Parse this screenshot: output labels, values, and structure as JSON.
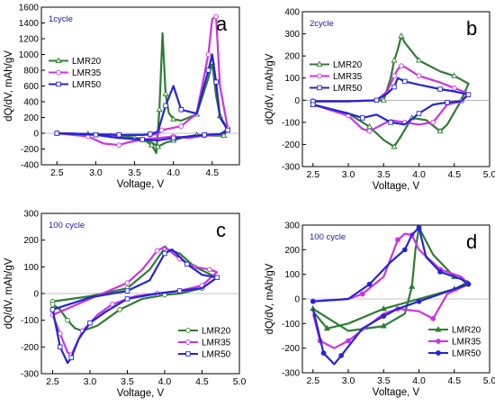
{
  "colors": {
    "LMR20": "#2e7d32",
    "LMR35": "#cc33e0",
    "LMR50": "#2424d8",
    "label_blue": "#1a1aa0"
  },
  "chart_data": [
    {
      "type": "line",
      "letter": "a",
      "cycle_label": "1cycle",
      "xlabel": "Voltage, V",
      "ylabel": "dQ/dV, mAh/gV",
      "xlim": [
        2.3,
        4.85
      ],
      "ylim": [
        -400,
        1600
      ],
      "xticks": [
        2.5,
        3.0,
        3.5,
        4.0,
        4.5
      ],
      "yticks": [
        -400,
        -200,
        0,
        200,
        400,
        600,
        800,
        1000,
        1200,
        1400,
        1600
      ],
      "legend": "left",
      "series": [
        {
          "name": "LMR20",
          "marker": "tri-open",
          "x": [
            2.5,
            2.9,
            3.3,
            3.6,
            3.72,
            3.78,
            3.82,
            3.86,
            3.9,
            3.94,
            4.0,
            4.1,
            4.3,
            4.45,
            4.5,
            4.55,
            4.6,
            4.7,
            4.65,
            4.5,
            4.3,
            4.1,
            4.0,
            3.9,
            3.8,
            3.7,
            3.5,
            3.2,
            2.9,
            2.5
          ],
          "y": [
            0,
            -10,
            -30,
            -70,
            -150,
            -250,
            300,
            1270,
            500,
            260,
            180,
            160,
            240,
            700,
            900,
            480,
            220,
            50,
            -30,
            -30,
            -20,
            -60,
            -90,
            -120,
            -170,
            -100,
            -60,
            -30,
            -10,
            0
          ]
        },
        {
          "name": "LMR35",
          "marker": "circle-open",
          "x": [
            2.5,
            2.9,
            3.2,
            3.5,
            3.7,
            3.8,
            3.85,
            3.95,
            4.1,
            4.3,
            4.45,
            4.5,
            4.55,
            4.6,
            4.7,
            4.6,
            4.4,
            4.2,
            4.0,
            3.8,
            3.6,
            3.4,
            3.3,
            3.1,
            2.9,
            2.5
          ],
          "y": [
            0,
            -10,
            -30,
            -20,
            -20,
            -10,
            40,
            60,
            90,
            250,
            1000,
            1450,
            1480,
            600,
            60,
            -20,
            -30,
            -60,
            -40,
            -60,
            -80,
            -120,
            -150,
            -130,
            -40,
            0
          ]
        },
        {
          "name": "LMR50",
          "marker": "square-open",
          "x": [
            2.5,
            2.9,
            3.3,
            3.6,
            3.7,
            3.8,
            3.9,
            4.0,
            4.1,
            4.3,
            4.45,
            4.5,
            4.55,
            4.6,
            4.7,
            4.6,
            4.4,
            4.2,
            4.0,
            3.8,
            3.6,
            3.3,
            3.0,
            2.5
          ],
          "y": [
            0,
            -10,
            -20,
            -20,
            -10,
            20,
            350,
            600,
            300,
            250,
            800,
            1000,
            650,
            200,
            40,
            -10,
            -20,
            -40,
            -60,
            -90,
            -80,
            -60,
            -20,
            0
          ]
        }
      ]
    },
    {
      "type": "line",
      "letter": "b",
      "cycle_label": "2cycle",
      "xlabel": "Voltage, V",
      "ylabel": "dQ/dV, mAh/gV",
      "xlim": [
        2.35,
        5.0
      ],
      "ylim": [
        -300,
        400
      ],
      "xticks": [
        2.5,
        3.0,
        3.5,
        4.0,
        4.5,
        5.0
      ],
      "yticks": [
        -300,
        -200,
        -100,
        0,
        100,
        200,
        300,
        400
      ],
      "legend": "left",
      "series": [
        {
          "name": "LMR20",
          "marker": "tri-open",
          "x": [
            2.5,
            3.0,
            3.5,
            3.6,
            3.65,
            3.7,
            3.75,
            3.8,
            4.0,
            4.3,
            4.5,
            4.7,
            4.6,
            4.4,
            4.3,
            4.1,
            3.9,
            3.75,
            3.65,
            3.5,
            3.3,
            3.0,
            2.5
          ],
          "y": [
            -5,
            -5,
            0,
            100,
            180,
            230,
            290,
            260,
            180,
            130,
            110,
            75,
            0,
            -110,
            -140,
            -90,
            -80,
            -160,
            -210,
            -180,
            -120,
            -60,
            -20
          ]
        },
        {
          "name": "LMR35",
          "marker": "circle-open",
          "x": [
            2.5,
            3.0,
            3.4,
            3.55,
            3.65,
            3.7,
            3.75,
            3.8,
            4.0,
            4.3,
            4.5,
            4.7,
            4.6,
            4.4,
            4.2,
            4.0,
            3.8,
            3.6,
            3.3,
            3.2,
            3.0,
            2.5
          ],
          "y": [
            -5,
            -5,
            0,
            40,
            110,
            140,
            155,
            150,
            110,
            80,
            55,
            30,
            -5,
            -20,
            -100,
            -110,
            -100,
            -90,
            -140,
            -130,
            -70,
            -20
          ]
        },
        {
          "name": "LMR50",
          "marker": "square-open",
          "x": [
            2.5,
            3.0,
            3.4,
            3.55,
            3.65,
            3.7,
            3.8,
            4.0,
            4.3,
            4.5,
            4.7,
            4.6,
            4.4,
            4.2,
            4.0,
            3.8,
            3.6,
            3.4,
            3.2,
            3.0,
            2.5
          ],
          "y": [
            -5,
            -5,
            0,
            30,
            60,
            100,
            85,
            70,
            50,
            40,
            25,
            -5,
            -10,
            -20,
            -60,
            -110,
            -100,
            -65,
            -80,
            -60,
            -20
          ]
        }
      ]
    },
    {
      "type": "line",
      "letter": "c",
      "cycle_label": "100 cycle",
      "xlabel": "Voltage, V",
      "ylabel": "dQ/dV, mAh/gV",
      "xlim": [
        2.35,
        5.0
      ],
      "ylim": [
        -300,
        300
      ],
      "xticks": [
        2.5,
        3.0,
        3.5,
        4.0,
        4.5,
        5.0
      ],
      "yticks": [
        -300,
        -200,
        -100,
        0,
        100,
        200,
        300
      ],
      "legend": "lower-right",
      "series": [
        {
          "name": "LMR20",
          "marker": "circle-open",
          "x": [
            2.5,
            3.0,
            3.5,
            3.8,
            4.0,
            4.2,
            4.4,
            4.7,
            4.5,
            4.2,
            4.0,
            3.7,
            3.4,
            3.1,
            2.9,
            2.8,
            2.7,
            2.6,
            2.5
          ],
          "y": [
            -30,
            -10,
            20,
            90,
            170,
            150,
            100,
            60,
            20,
            0,
            -5,
            -20,
            -60,
            -120,
            -140,
            -130,
            -100,
            -60,
            -40
          ]
        },
        {
          "name": "LMR35",
          "marker": "circle-open",
          "x": [
            2.5,
            3.0,
            3.5,
            3.7,
            3.9,
            4.0,
            4.2,
            4.4,
            4.6,
            4.7,
            4.5,
            4.2,
            3.9,
            3.6,
            3.3,
            3.1,
            2.9,
            2.8,
            2.75,
            2.7,
            2.6,
            2.5
          ],
          "y": [
            -80,
            -20,
            40,
            90,
            160,
            175,
            130,
            100,
            90,
            80,
            30,
            10,
            0,
            -10,
            -40,
            -80,
            -140,
            -200,
            -230,
            -220,
            -150,
            -80
          ]
        },
        {
          "name": "LMR50",
          "marker": "square-open",
          "x": [
            2.5,
            3.0,
            3.5,
            3.8,
            4.0,
            4.1,
            4.3,
            4.5,
            4.7,
            4.5,
            4.2,
            3.9,
            3.5,
            3.2,
            3.0,
            2.85,
            2.75,
            2.7,
            2.6,
            2.5
          ],
          "y": [
            -60,
            -15,
            10,
            50,
            150,
            165,
            110,
            70,
            60,
            20,
            10,
            0,
            -20,
            -70,
            -110,
            -170,
            -240,
            -260,
            -200,
            -60
          ]
        }
      ]
    },
    {
      "type": "line",
      "letter": "d",
      "cycle_label": "100 cycle",
      "xlabel": "Voltage, V",
      "ylabel": "dQ/dV, mAh/gV",
      "xlim": [
        2.35,
        5.0
      ],
      "ylim": [
        -300,
        300
      ],
      "xticks": [
        2.5,
        3.0,
        3.5,
        4.0,
        4.5,
        5.0
      ],
      "yticks": [
        -300,
        -200,
        -100,
        0,
        100,
        200,
        300
      ],
      "legend": "lower-right",
      "series": [
        {
          "name": "LMR20",
          "marker": "tri-filled",
          "x": [
            2.5,
            3.0,
            3.5,
            3.8,
            3.9,
            3.95,
            4.0,
            4.2,
            4.5,
            4.7,
            4.5,
            4.0,
            3.5,
            3.0,
            2.7,
            2.5
          ],
          "y": [
            -40,
            -130,
            -110,
            -60,
            50,
            200,
            290,
            180,
            90,
            70,
            40,
            0,
            -40,
            -100,
            -120,
            -50
          ]
        },
        {
          "name": "LMR35",
          "marker": "circle-filled",
          "x": [
            2.5,
            3.0,
            3.2,
            3.5,
            3.7,
            3.8,
            3.9,
            4.0,
            4.3,
            4.6,
            4.7,
            4.4,
            4.2,
            4.0,
            3.7,
            3.5,
            3.0,
            2.8,
            2.6,
            2.5
          ],
          "y": [
            -10,
            0,
            20,
            90,
            240,
            265,
            260,
            200,
            120,
            90,
            60,
            20,
            -80,
            -50,
            -40,
            -60,
            -170,
            -200,
            -170,
            -60
          ]
        },
        {
          "name": "LMR50",
          "marker": "circle-filled",
          "x": [
            2.5,
            3.0,
            3.3,
            3.6,
            3.8,
            3.9,
            4.0,
            4.1,
            4.3,
            4.6,
            4.7,
            4.4,
            4.0,
            3.7,
            3.5,
            3.2,
            2.9,
            2.8,
            2.65,
            2.5
          ],
          "y": [
            -10,
            0,
            60,
            150,
            200,
            260,
            290,
            170,
            110,
            80,
            60,
            30,
            -10,
            -40,
            -70,
            -120,
            -230,
            -265,
            -220,
            -40
          ]
        }
      ]
    }
  ]
}
